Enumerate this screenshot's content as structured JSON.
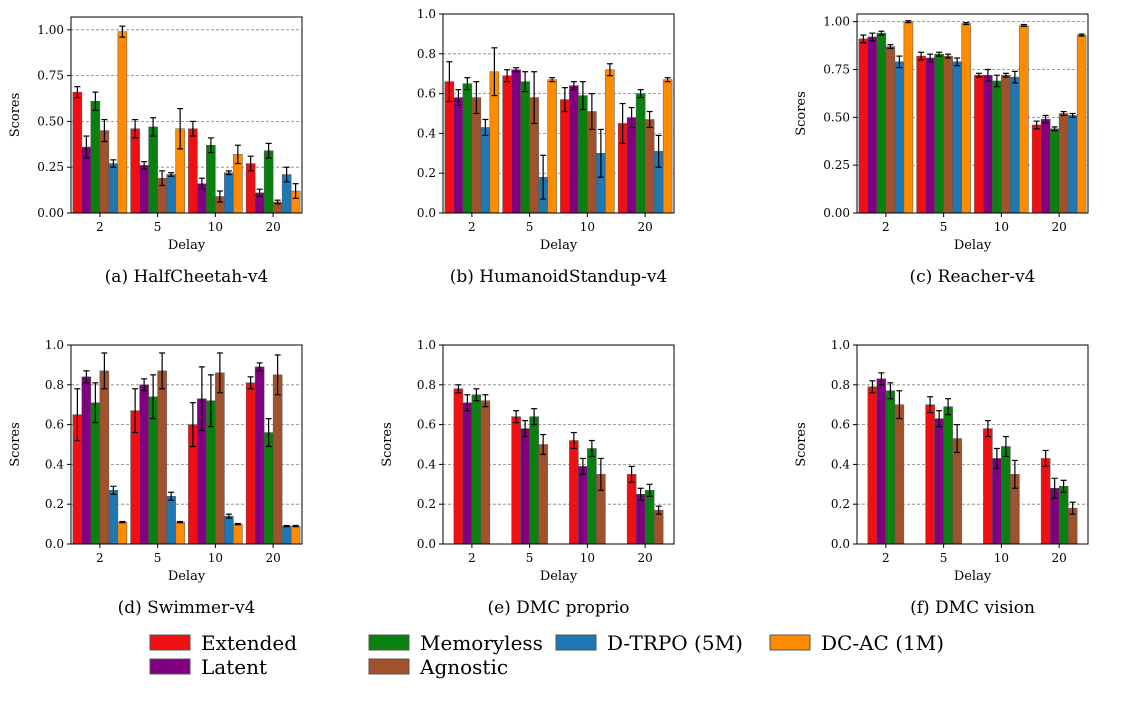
{
  "colors": {
    "Extended": "#f00f12",
    "Latent": "#800080",
    "Memoryless": "#0a8010",
    "Agnostic": "#a0522d",
    "D-TRPO (5M)": "#1f77b4",
    "DC-AC (1M)": "#ff8c00"
  },
  "legend": {
    "entries": [
      "Extended",
      "Latent",
      "Memoryless",
      "Agnostic",
      "D-TRPO (5M)",
      "DC-AC (1M)"
    ]
  },
  "chart_data": [
    {
      "type": "bar",
      "caption": "(a) HalfCheetah-v4",
      "xlabel": "Delay",
      "ylabel": "Scores",
      "categories": [
        "2",
        "5",
        "10",
        "20"
      ],
      "ylim": [
        0,
        1.07
      ],
      "yticks": [
        "0.00",
        "0.25",
        "0.50",
        "0.75",
        "1.00"
      ],
      "grid": true,
      "series": [
        {
          "name": "Extended",
          "values": [
            0.66,
            0.46,
            0.46,
            0.27
          ],
          "errors": [
            0.03,
            0.05,
            0.04,
            0.04
          ]
        },
        {
          "name": "Latent",
          "values": [
            0.36,
            0.26,
            0.16,
            0.11
          ],
          "errors": [
            0.06,
            0.02,
            0.03,
            0.02
          ]
        },
        {
          "name": "Memoryless",
          "values": [
            0.61,
            0.47,
            0.37,
            0.34
          ],
          "errors": [
            0.05,
            0.05,
            0.04,
            0.04
          ]
        },
        {
          "name": "Agnostic",
          "values": [
            0.45,
            0.19,
            0.09,
            0.06
          ],
          "errors": [
            0.06,
            0.04,
            0.03,
            0.01
          ]
        },
        {
          "name": "D-TRPO (5M)",
          "values": [
            0.27,
            0.21,
            0.22,
            0.21
          ],
          "errors": [
            0.02,
            0.01,
            0.01,
            0.04
          ]
        },
        {
          "name": "DC-AC (1M)",
          "values": [
            0.99,
            0.46,
            0.32,
            0.12
          ],
          "errors": [
            0.03,
            0.11,
            0.05,
            0.04
          ]
        }
      ]
    },
    {
      "type": "bar",
      "caption": "(b) HumanoidStandup-v4",
      "xlabel": "Delay",
      "ylabel": "",
      "categories": [
        "2",
        "5",
        "10",
        "20"
      ],
      "ylim": [
        0,
        1.0
      ],
      "yticks": [
        "0.0",
        "0.2",
        "0.4",
        "0.6",
        "0.8",
        "1.0"
      ],
      "grid": true,
      "series": [
        {
          "name": "Extended",
          "values": [
            0.66,
            0.69,
            0.57,
            0.45
          ],
          "errors": [
            0.1,
            0.03,
            0.06,
            0.1
          ]
        },
        {
          "name": "Latent",
          "values": [
            0.58,
            0.72,
            0.64,
            0.48
          ],
          "errors": [
            0.04,
            0.01,
            0.02,
            0.05
          ]
        },
        {
          "name": "Memoryless",
          "values": [
            0.65,
            0.66,
            0.59,
            0.6
          ],
          "errors": [
            0.03,
            0.05,
            0.07,
            0.02
          ]
        },
        {
          "name": "Agnostic",
          "values": [
            0.58,
            0.58,
            0.51,
            0.47
          ],
          "errors": [
            0.08,
            0.13,
            0.09,
            0.04
          ]
        },
        {
          "name": "D-TRPO (5M)",
          "values": [
            0.43,
            0.18,
            0.3,
            0.31
          ],
          "errors": [
            0.04,
            0.11,
            0.12,
            0.08
          ]
        },
        {
          "name": "DC-AC (1M)",
          "values": [
            0.71,
            0.67,
            0.72,
            0.67
          ],
          "errors": [
            0.12,
            0.01,
            0.03,
            0.01
          ]
        }
      ]
    },
    {
      "type": "bar",
      "caption": "(c) Reacher-v4",
      "xlabel": "Delay",
      "ylabel": "Scores",
      "categories": [
        "2",
        "5",
        "10",
        "20"
      ],
      "ylim": [
        0,
        1.04
      ],
      "yticks": [
        "0.00",
        "0.25",
        "0.50",
        "0.75",
        "1.00"
      ],
      "grid": true,
      "series": [
        {
          "name": "Extended",
          "values": [
            0.91,
            0.82,
            0.72,
            0.46
          ],
          "errors": [
            0.02,
            0.02,
            0.01,
            0.02
          ]
        },
        {
          "name": "Latent",
          "values": [
            0.92,
            0.81,
            0.72,
            0.49
          ],
          "errors": [
            0.02,
            0.02,
            0.03,
            0.02
          ]
        },
        {
          "name": "Memoryless",
          "values": [
            0.94,
            0.83,
            0.69,
            0.44
          ],
          "errors": [
            0.01,
            0.01,
            0.03,
            0.01
          ]
        },
        {
          "name": "Agnostic",
          "values": [
            0.87,
            0.82,
            0.72,
            0.52
          ],
          "errors": [
            0.01,
            0.01,
            0.01,
            0.01
          ]
        },
        {
          "name": "D-TRPO (5M)",
          "values": [
            0.79,
            0.79,
            0.71,
            0.51
          ],
          "errors": [
            0.03,
            0.02,
            0.03,
            0.01
          ]
        },
        {
          "name": "DC-AC (1M)",
          "values": [
            1.0,
            0.99,
            0.98,
            0.93
          ],
          "errors": [
            0.005,
            0.005,
            0.005,
            0.005
          ]
        }
      ]
    },
    {
      "type": "bar",
      "caption": "(d) Swimmer-v4",
      "xlabel": "Delay",
      "ylabel": "Scores",
      "categories": [
        "2",
        "5",
        "10",
        "20"
      ],
      "ylim": [
        0,
        1.0
      ],
      "yticks": [
        "0.0",
        "0.2",
        "0.4",
        "0.6",
        "0.8",
        "1.0"
      ],
      "grid": true,
      "series": [
        {
          "name": "Extended",
          "values": [
            0.65,
            0.67,
            0.6,
            0.81
          ],
          "errors": [
            0.13,
            0.11,
            0.11,
            0.03
          ]
        },
        {
          "name": "Latent",
          "values": [
            0.84,
            0.8,
            0.73,
            0.89
          ],
          "errors": [
            0.03,
            0.03,
            0.16,
            0.02
          ]
        },
        {
          "name": "Memoryless",
          "values": [
            0.71,
            0.74,
            0.72,
            0.56
          ],
          "errors": [
            0.1,
            0.11,
            0.13,
            0.07
          ]
        },
        {
          "name": "Agnostic",
          "values": [
            0.87,
            0.87,
            0.86,
            0.85
          ],
          "errors": [
            0.09,
            0.09,
            0.1,
            0.1
          ]
        },
        {
          "name": "D-TRPO (5M)",
          "values": [
            0.27,
            0.24,
            0.14,
            0.09
          ],
          "errors": [
            0.02,
            0.02,
            0.01,
            0.003
          ]
        },
        {
          "name": "DC-AC (1M)",
          "values": [
            0.11,
            0.11,
            0.1,
            0.09
          ],
          "errors": [
            0.003,
            0.003,
            0.003,
            0.003
          ]
        }
      ]
    },
    {
      "type": "bar",
      "caption": "(e) DMC proprio",
      "xlabel": "Delay",
      "ylabel": "Scores",
      "categories": [
        "2",
        "5",
        "10",
        "20"
      ],
      "ylim": [
        0,
        1.0
      ],
      "yticks": [
        "0.0",
        "0.2",
        "0.4",
        "0.6",
        "0.8",
        "1.0"
      ],
      "grid": true,
      "series": [
        {
          "name": "Extended",
          "values": [
            0.78,
            0.64,
            0.52,
            0.35
          ],
          "errors": [
            0.02,
            0.03,
            0.04,
            0.04
          ]
        },
        {
          "name": "Latent",
          "values": [
            0.71,
            0.58,
            0.39,
            0.25
          ],
          "errors": [
            0.04,
            0.04,
            0.04,
            0.03
          ]
        },
        {
          "name": "Memoryless",
          "values": [
            0.75,
            0.64,
            0.48,
            0.27
          ],
          "errors": [
            0.03,
            0.04,
            0.04,
            0.03
          ]
        },
        {
          "name": "Agnostic",
          "values": [
            0.72,
            0.5,
            0.35,
            0.17
          ],
          "errors": [
            0.03,
            0.05,
            0.08,
            0.02
          ]
        }
      ]
    },
    {
      "type": "bar",
      "caption": "(f) DMC vision",
      "xlabel": "Delay",
      "ylabel": "Scores",
      "categories": [
        "2",
        "5",
        "10",
        "20"
      ],
      "ylim": [
        0,
        1.0
      ],
      "yticks": [
        "0.0",
        "0.2",
        "0.4",
        "0.6",
        "0.8",
        "1.0"
      ],
      "grid": true,
      "series": [
        {
          "name": "Extended",
          "values": [
            0.79,
            0.7,
            0.58,
            0.43
          ],
          "errors": [
            0.03,
            0.04,
            0.04,
            0.04
          ]
        },
        {
          "name": "Latent",
          "values": [
            0.83,
            0.63,
            0.43,
            0.28
          ],
          "errors": [
            0.03,
            0.04,
            0.05,
            0.05
          ]
        },
        {
          "name": "Memoryless",
          "values": [
            0.77,
            0.69,
            0.49,
            0.29
          ],
          "errors": [
            0.04,
            0.04,
            0.05,
            0.03
          ]
        },
        {
          "name": "Agnostic",
          "values": [
            0.7,
            0.53,
            0.35,
            0.18
          ],
          "errors": [
            0.07,
            0.07,
            0.07,
            0.03
          ]
        }
      ]
    }
  ]
}
